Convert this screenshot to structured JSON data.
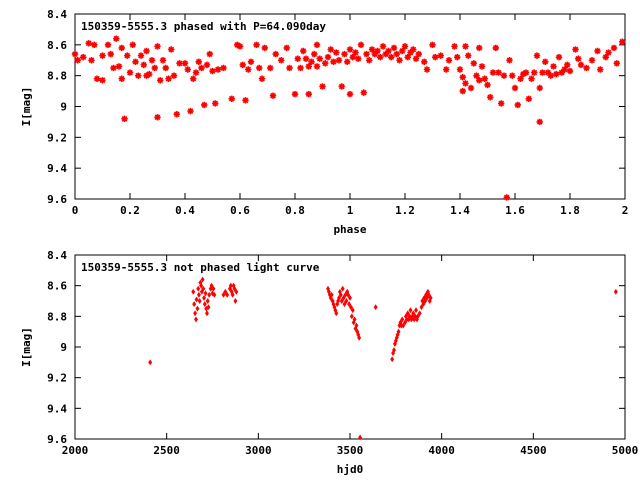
{
  "chart_data": [
    {
      "type": "scatter",
      "title": "150359-5555.3 phased with P=64.090day",
      "xlabel": "phase",
      "ylabel": "I[mag]",
      "xlim": [
        0,
        2
      ],
      "ylim": [
        8.4,
        9.6
      ],
      "y_inverted": true,
      "xticks": [
        "0",
        "0.2",
        "0.4",
        "0.6",
        "0.8",
        "1",
        "1.2",
        "1.4",
        "1.6",
        "1.8",
        "2"
      ],
      "yticks": [
        "8.4",
        "8.6",
        "8.8",
        "9",
        "9.2",
        "9.4",
        "9.6"
      ],
      "marker": "star",
      "color": "#ff0000",
      "grid": false,
      "points": [
        [
          0.0,
          8.66
        ],
        [
          0.01,
          8.7
        ],
        [
          0.03,
          8.68
        ],
        [
          0.05,
          8.59
        ],
        [
          0.06,
          8.7
        ],
        [
          0.07,
          8.6
        ],
        [
          0.08,
          8.82
        ],
        [
          0.1,
          8.67
        ],
        [
          0.1,
          8.83
        ],
        [
          0.12,
          8.6
        ],
        [
          0.13,
          8.66
        ],
        [
          0.14,
          8.75
        ],
        [
          0.15,
          8.56
        ],
        [
          0.16,
          8.74
        ],
        [
          0.17,
          8.62
        ],
        [
          0.17,
          8.82
        ],
        [
          0.18,
          9.08
        ],
        [
          0.19,
          8.67
        ],
        [
          0.2,
          8.78
        ],
        [
          0.21,
          8.6
        ],
        [
          0.22,
          8.71
        ],
        [
          0.23,
          8.8
        ],
        [
          0.24,
          8.67
        ],
        [
          0.25,
          8.73
        ],
        [
          0.26,
          8.64
        ],
        [
          0.26,
          8.8
        ],
        [
          0.27,
          8.79
        ],
        [
          0.28,
          8.7
        ],
        [
          0.29,
          8.75
        ],
        [
          0.3,
          8.61
        ],
        [
          0.3,
          9.07
        ],
        [
          0.31,
          8.83
        ],
        [
          0.32,
          8.7
        ],
        [
          0.33,
          8.75
        ],
        [
          0.34,
          8.82
        ],
        [
          0.35,
          8.63
        ],
        [
          0.36,
          8.8
        ],
        [
          0.37,
          9.05
        ],
        [
          0.38,
          8.72
        ],
        [
          0.4,
          8.72
        ],
        [
          0.41,
          8.76
        ],
        [
          0.42,
          9.03
        ],
        [
          0.43,
          8.82
        ],
        [
          0.44,
          8.78
        ],
        [
          0.45,
          8.71
        ],
        [
          0.46,
          8.75
        ],
        [
          0.47,
          8.99
        ],
        [
          0.48,
          8.73
        ],
        [
          0.49,
          8.66
        ],
        [
          0.5,
          8.77
        ],
        [
          0.51,
          8.98
        ],
        [
          0.52,
          8.76
        ],
        [
          0.54,
          8.75
        ],
        [
          0.57,
          8.95
        ],
        [
          0.59,
          8.6
        ],
        [
          0.6,
          8.61
        ],
        [
          0.61,
          8.73
        ],
        [
          0.62,
          8.96
        ],
        [
          0.63,
          8.76
        ],
        [
          0.64,
          8.71
        ],
        [
          0.66,
          8.6
        ],
        [
          0.67,
          8.75
        ],
        [
          0.68,
          8.82
        ],
        [
          0.69,
          8.62
        ],
        [
          0.71,
          8.75
        ],
        [
          0.72,
          8.93
        ],
        [
          0.73,
          8.66
        ],
        [
          0.75,
          8.7
        ],
        [
          0.77,
          8.62
        ],
        [
          0.78,
          8.75
        ],
        [
          0.8,
          8.92
        ],
        [
          0.81,
          8.69
        ],
        [
          0.82,
          8.75
        ],
        [
          0.83,
          8.64
        ],
        [
          0.84,
          8.69
        ],
        [
          0.85,
          8.74
        ],
        [
          0.85,
          8.92
        ],
        [
          0.86,
          8.71
        ],
        [
          0.87,
          8.66
        ],
        [
          0.88,
          8.74
        ],
        [
          0.88,
          8.6
        ],
        [
          0.89,
          8.69
        ],
        [
          0.9,
          8.87
        ],
        [
          0.91,
          8.72
        ],
        [
          0.92,
          8.68
        ],
        [
          0.93,
          8.63
        ],
        [
          0.94,
          8.71
        ],
        [
          0.95,
          8.65
        ],
        [
          0.96,
          8.7
        ],
        [
          0.97,
          8.87
        ],
        [
          0.98,
          8.66
        ],
        [
          0.99,
          8.71
        ],
        [
          1.0,
          8.63
        ],
        [
          1.0,
          8.92
        ],
        [
          1.01,
          8.68
        ],
        [
          1.02,
          8.65
        ],
        [
          1.03,
          8.69
        ],
        [
          1.04,
          8.6
        ],
        [
          1.05,
          8.91
        ],
        [
          1.06,
          8.66
        ],
        [
          1.07,
          8.7
        ],
        [
          1.08,
          8.63
        ],
        [
          1.09,
          8.66
        ],
        [
          1.1,
          8.64
        ],
        [
          1.11,
          8.68
        ],
        [
          1.12,
          8.61
        ],
        [
          1.13,
          8.66
        ],
        [
          1.14,
          8.64
        ],
        [
          1.15,
          8.68
        ],
        [
          1.16,
          8.62
        ],
        [
          1.17,
          8.66
        ],
        [
          1.18,
          8.7
        ],
        [
          1.19,
          8.64
        ],
        [
          1.2,
          8.61
        ],
        [
          1.21,
          8.68
        ],
        [
          1.22,
          8.65
        ],
        [
          1.23,
          8.63
        ],
        [
          1.24,
          8.69
        ],
        [
          1.25,
          8.66
        ],
        [
          1.27,
          8.71
        ],
        [
          1.28,
          8.76
        ],
        [
          1.3,
          8.6
        ],
        [
          1.31,
          8.68
        ],
        [
          1.33,
          8.67
        ],
        [
          1.35,
          8.76
        ],
        [
          1.36,
          8.7
        ],
        [
          1.38,
          8.61
        ],
        [
          1.39,
          8.68
        ],
        [
          1.4,
          8.76
        ],
        [
          1.41,
          8.81
        ],
        [
          1.41,
          8.9
        ],
        [
          1.42,
          8.85
        ],
        [
          1.42,
          8.61
        ],
        [
          1.43,
          8.67
        ],
        [
          1.44,
          8.88
        ],
        [
          1.45,
          8.72
        ],
        [
          1.46,
          8.8
        ],
        [
          1.47,
          8.83
        ],
        [
          1.47,
          8.62
        ],
        [
          1.48,
          8.74
        ],
        [
          1.49,
          8.82
        ],
        [
          1.5,
          8.86
        ],
        [
          1.51,
          8.94
        ],
        [
          1.52,
          8.78
        ],
        [
          1.53,
          8.62
        ],
        [
          1.54,
          8.78
        ],
        [
          1.55,
          8.98
        ],
        [
          1.56,
          8.8
        ],
        [
          1.57,
          9.59
        ],
        [
          1.58,
          8.7
        ],
        [
          1.59,
          8.8
        ],
        [
          1.6,
          8.88
        ],
        [
          1.61,
          8.99
        ],
        [
          1.62,
          8.82
        ],
        [
          1.63,
          8.79
        ],
        [
          1.64,
          8.78
        ],
        [
          1.65,
          8.95
        ],
        [
          1.66,
          8.82
        ],
        [
          1.67,
          8.78
        ],
        [
          1.68,
          8.67
        ],
        [
          1.69,
          9.1
        ],
        [
          1.69,
          8.88
        ],
        [
          1.7,
          8.78
        ],
        [
          1.71,
          8.71
        ],
        [
          1.72,
          8.78
        ],
        [
          1.73,
          8.8
        ],
        [
          1.74,
          8.74
        ],
        [
          1.75,
          8.79
        ],
        [
          1.76,
          8.68
        ],
        [
          1.77,
          8.78
        ],
        [
          1.78,
          8.76
        ],
        [
          1.79,
          8.73
        ],
        [
          1.8,
          8.77
        ],
        [
          1.82,
          8.63
        ],
        [
          1.83,
          8.69
        ],
        [
          1.84,
          8.73
        ],
        [
          1.86,
          8.75
        ],
        [
          1.88,
          8.7
        ],
        [
          1.9,
          8.64
        ],
        [
          1.91,
          8.76
        ],
        [
          1.93,
          8.68
        ],
        [
          1.94,
          8.65
        ],
        [
          1.96,
          8.62
        ],
        [
          1.97,
          8.72
        ],
        [
          1.99,
          8.58
        ]
      ]
    },
    {
      "type": "scatter",
      "title": "150359-5555.3 not phased light curve",
      "xlabel": "hjd0",
      "ylabel": "I[mag]",
      "xlim": [
        2000,
        5000
      ],
      "ylim": [
        8.4,
        9.6
      ],
      "y_inverted": true,
      "xticks": [
        "2000",
        "2500",
        "3000",
        "3500",
        "4000",
        "4500",
        "5000"
      ],
      "yticks": [
        "8.4",
        "8.6",
        "8.8",
        "9",
        "9.2",
        "9.4",
        "9.6"
      ],
      "marker": "diamond",
      "color": "#ff0000",
      "grid": false,
      "points": [
        [
          2410,
          9.1
        ],
        [
          2645,
          8.64
        ],
        [
          2650,
          8.72
        ],
        [
          2655,
          8.78
        ],
        [
          2660,
          8.82
        ],
        [
          2663,
          8.69
        ],
        [
          2668,
          8.75
        ],
        [
          2672,
          8.62
        ],
        [
          2676,
          8.66
        ],
        [
          2680,
          8.7
        ],
        [
          2684,
          8.58
        ],
        [
          2688,
          8.6
        ],
        [
          2692,
          8.64
        ],
        [
          2696,
          8.56
        ],
        [
          2700,
          8.62
        ],
        [
          2704,
          8.68
        ],
        [
          2708,
          8.72
        ],
        [
          2712,
          8.65
        ],
        [
          2716,
          8.75
        ],
        [
          2720,
          8.78
        ],
        [
          2724,
          8.7
        ],
        [
          2728,
          8.74
        ],
        [
          2732,
          8.66
        ],
        [
          2740,
          8.62
        ],
        [
          2745,
          8.6
        ],
        [
          2750,
          8.65
        ],
        [
          2755,
          8.62
        ],
        [
          2760,
          8.66
        ],
        [
          2810,
          8.66
        ],
        [
          2820,
          8.64
        ],
        [
          2830,
          8.66
        ],
        [
          2845,
          8.62
        ],
        [
          2850,
          8.6
        ],
        [
          2855,
          8.64
        ],
        [
          2860,
          8.66
        ],
        [
          2865,
          8.6
        ],
        [
          2870,
          8.62
        ],
        [
          2875,
          8.7
        ],
        [
          2880,
          8.64
        ],
        [
          3380,
          8.62
        ],
        [
          3385,
          8.64
        ],
        [
          3390,
          8.66
        ],
        [
          3395,
          8.68
        ],
        [
          3400,
          8.66
        ],
        [
          3405,
          8.7
        ],
        [
          3410,
          8.72
        ],
        [
          3415,
          8.74
        ],
        [
          3420,
          8.76
        ],
        [
          3425,
          8.78
        ],
        [
          3430,
          8.72
        ],
        [
          3435,
          8.7
        ],
        [
          3440,
          8.68
        ],
        [
          3445,
          8.64
        ],
        [
          3450,
          8.66
        ],
        [
          3455,
          8.7
        ],
        [
          3460,
          8.62
        ],
        [
          3465,
          8.68
        ],
        [
          3470,
          8.72
        ],
        [
          3475,
          8.66
        ],
        [
          3480,
          8.7
        ],
        [
          3485,
          8.64
        ],
        [
          3490,
          8.66
        ],
        [
          3495,
          8.72
        ],
        [
          3500,
          8.68
        ],
        [
          3505,
          8.74
        ],
        [
          3510,
          8.8
        ],
        [
          3515,
          8.76
        ],
        [
          3520,
          8.84
        ],
        [
          3525,
          8.82
        ],
        [
          3530,
          8.88
        ],
        [
          3535,
          8.86
        ],
        [
          3540,
          8.9
        ],
        [
          3545,
          8.92
        ],
        [
          3550,
          8.94
        ],
        [
          3555,
          9.59
        ],
        [
          3640,
          8.74
        ],
        [
          3730,
          9.08
        ],
        [
          3735,
          9.04
        ],
        [
          3740,
          9.02
        ],
        [
          3745,
          8.98
        ],
        [
          3750,
          8.96
        ],
        [
          3755,
          8.94
        ],
        [
          3760,
          8.92
        ],
        [
          3765,
          8.9
        ],
        [
          3770,
          8.86
        ],
        [
          3775,
          8.84
        ],
        [
          3780,
          8.86
        ],
        [
          3785,
          8.82
        ],
        [
          3790,
          8.86
        ],
        [
          3800,
          8.84
        ],
        [
          3805,
          8.8
        ],
        [
          3810,
          8.82
        ],
        [
          3815,
          8.78
        ],
        [
          3820,
          8.82
        ],
        [
          3825,
          8.8
        ],
        [
          3830,
          8.76
        ],
        [
          3835,
          8.82
        ],
        [
          3840,
          8.8
        ],
        [
          3845,
          8.78
        ],
        [
          3850,
          8.82
        ],
        [
          3855,
          8.8
        ],
        [
          3860,
          8.76
        ],
        [
          3865,
          8.82
        ],
        [
          3870,
          8.8
        ],
        [
          3880,
          8.78
        ],
        [
          3890,
          8.74
        ],
        [
          3895,
          8.7
        ],
        [
          3900,
          8.72
        ],
        [
          3905,
          8.68
        ],
        [
          3910,
          8.7
        ],
        [
          3915,
          8.66
        ],
        [
          3920,
          8.68
        ],
        [
          3925,
          8.64
        ],
        [
          3930,
          8.66
        ],
        [
          3935,
          8.7
        ],
        [
          3940,
          8.68
        ],
        [
          4950,
          8.64
        ]
      ]
    }
  ]
}
